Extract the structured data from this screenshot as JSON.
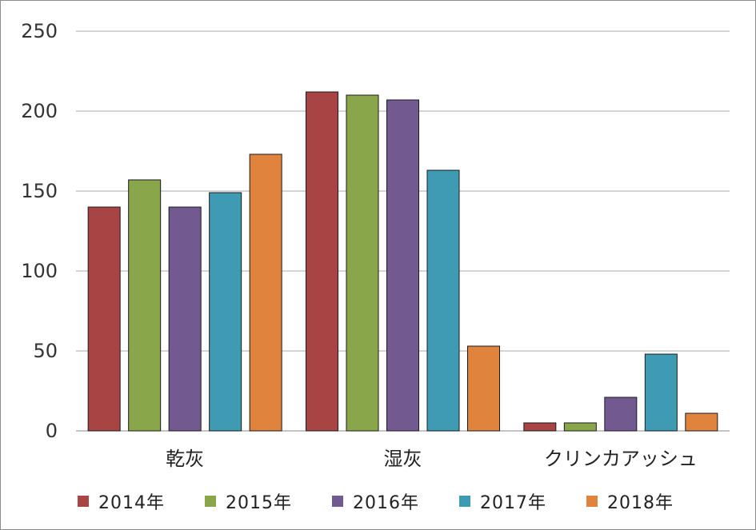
{
  "chart_data": {
    "type": "bar",
    "categories": [
      "乾灰",
      "湿灰",
      "クリンカアッシュ"
    ],
    "series": [
      {
        "name": "2014年",
        "color": "#a94444",
        "values": [
          140,
          212,
          5
        ]
      },
      {
        "name": "2015年",
        "color": "#8aa64a",
        "values": [
          157,
          210,
          5
        ]
      },
      {
        "name": "2016年",
        "color": "#725a91",
        "values": [
          140,
          207,
          21
        ]
      },
      {
        "name": "2017年",
        "color": "#3f9bb3",
        "values": [
          149,
          163,
          48
        ]
      },
      {
        "name": "2018年",
        "color": "#df833d",
        "values": [
          173,
          53,
          11
        ]
      }
    ],
    "ylim": [
      0,
      250
    ],
    "yticks": [
      0,
      50,
      100,
      150,
      200,
      250
    ],
    "grid": true,
    "legend": "bottom"
  }
}
